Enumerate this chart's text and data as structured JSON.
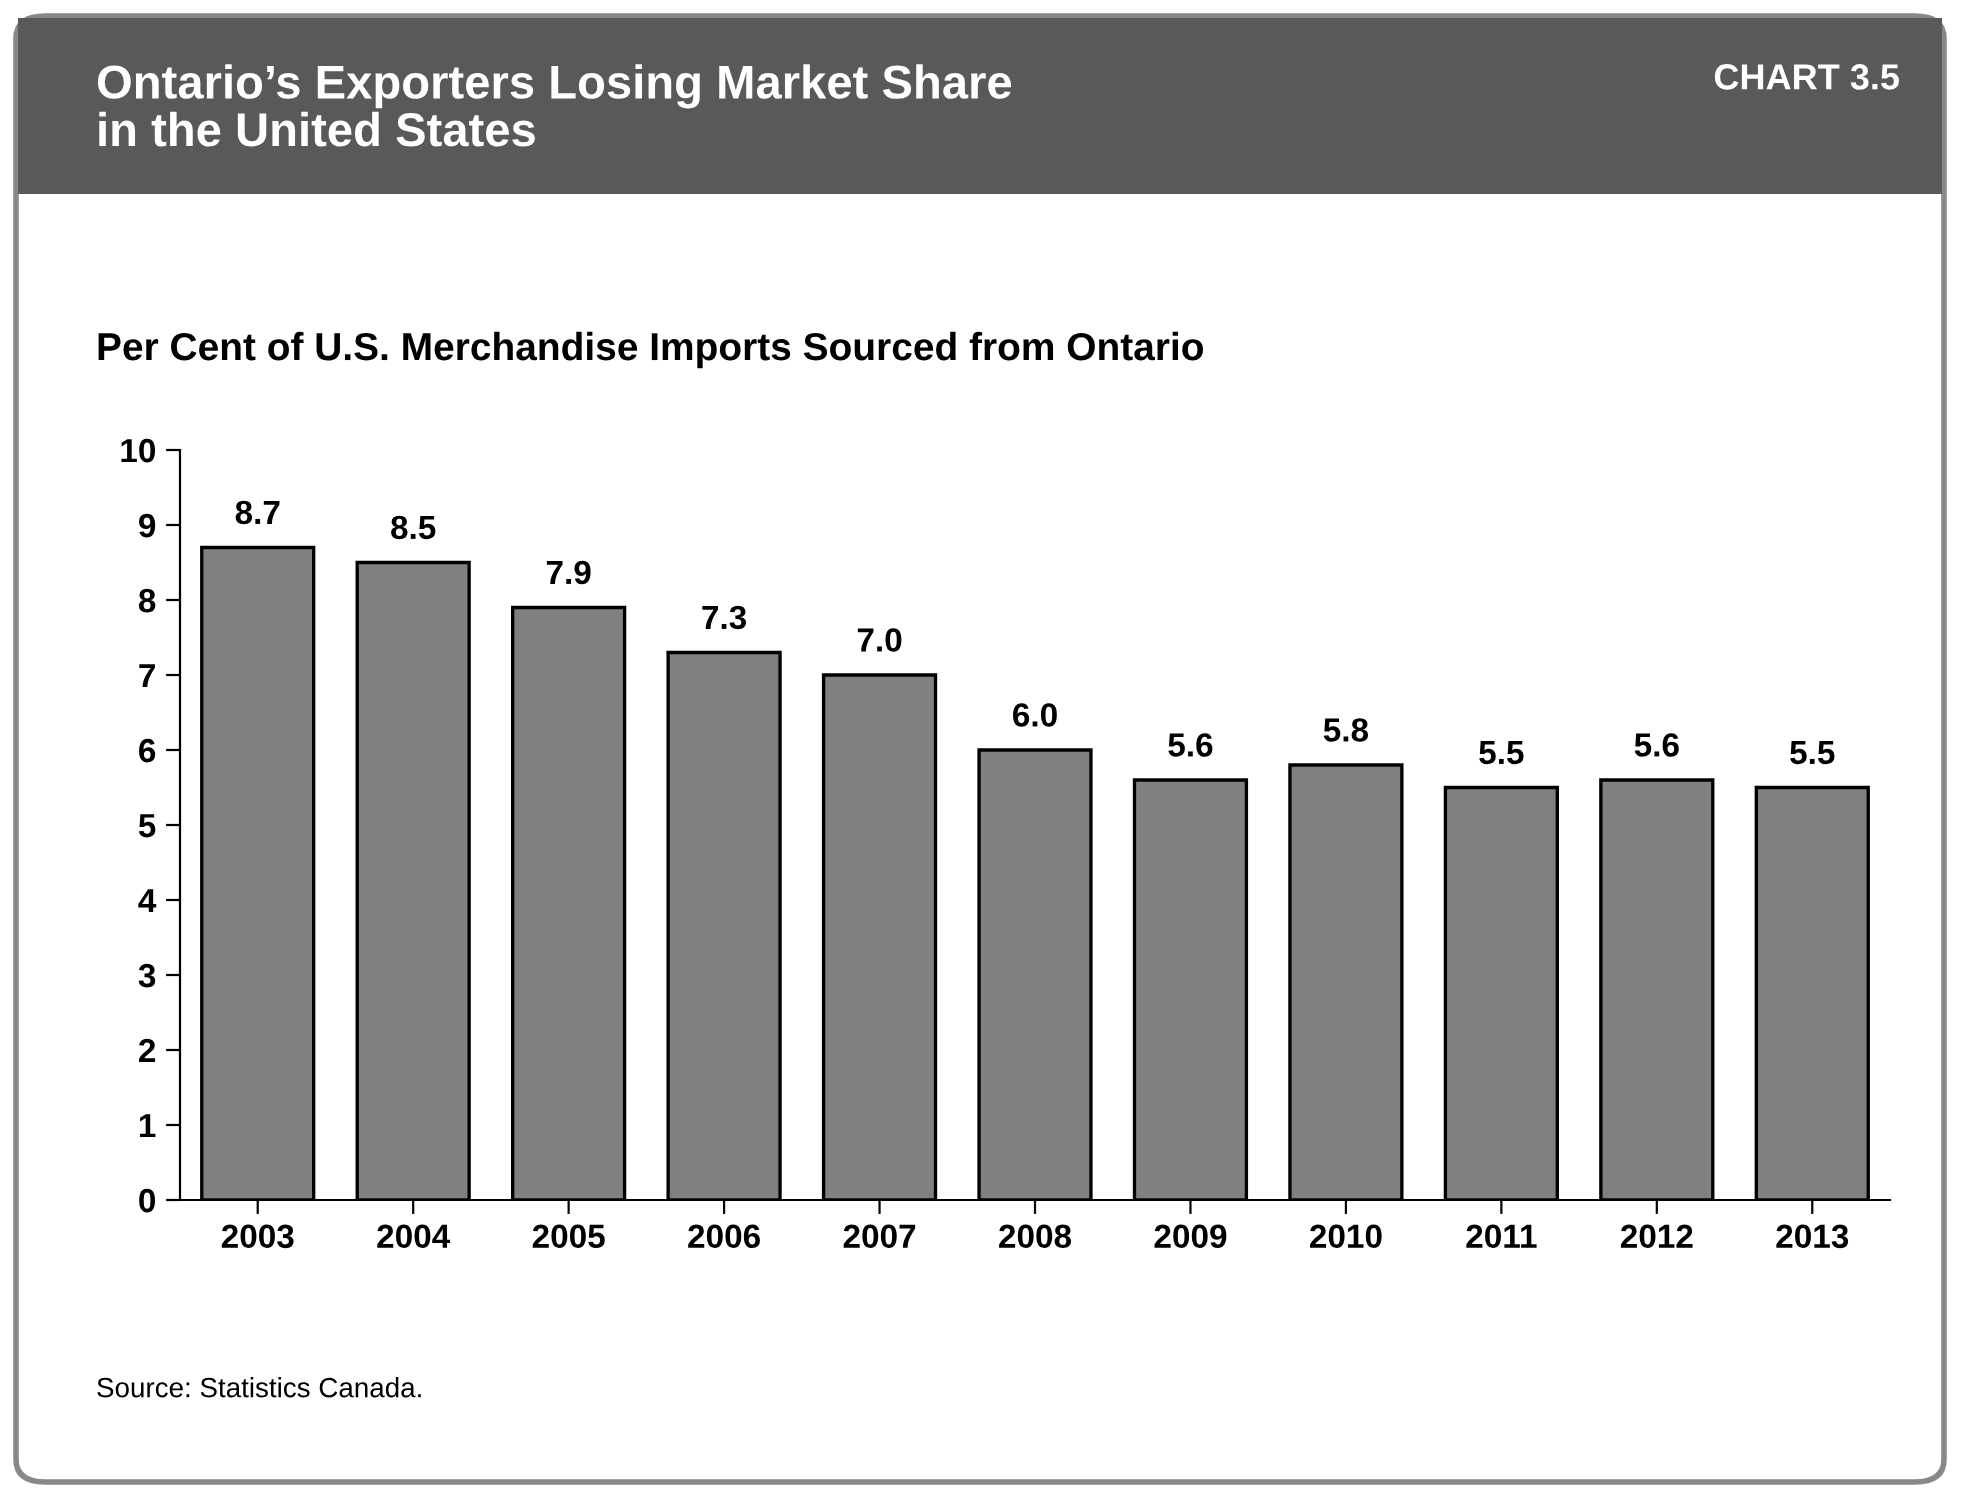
{
  "chart_data": {
    "type": "bar",
    "title": "Ontario’s Exporters Losing Market Share\nin the United States",
    "subtitle": "Per Cent of U.S. Merchandise Imports Sourced from Ontario",
    "annotations": [
      "CHART 3.5",
      "Source: Statistics Canada."
    ],
    "categories": [
      "2003",
      "2004",
      "2005",
      "2006",
      "2007",
      "2008",
      "2009",
      "2010",
      "2011",
      "2012",
      "2013"
    ],
    "values": [
      8.7,
      8.5,
      7.9,
      7.3,
      7.0,
      6.0,
      5.6,
      5.8,
      5.5,
      5.6,
      5.5
    ],
    "color": "#808080",
    "ylim": [
      0,
      10
    ],
    "yticks": [
      0,
      1,
      2,
      3,
      4,
      5,
      6,
      7,
      8,
      9,
      10
    ],
    "value_labels": [
      "8.7",
      "8.5",
      "7.9",
      "7.3",
      "7.0",
      "6.0",
      "5.6",
      "5.8",
      "5.5",
      "5.6",
      "5.5"
    ]
  }
}
